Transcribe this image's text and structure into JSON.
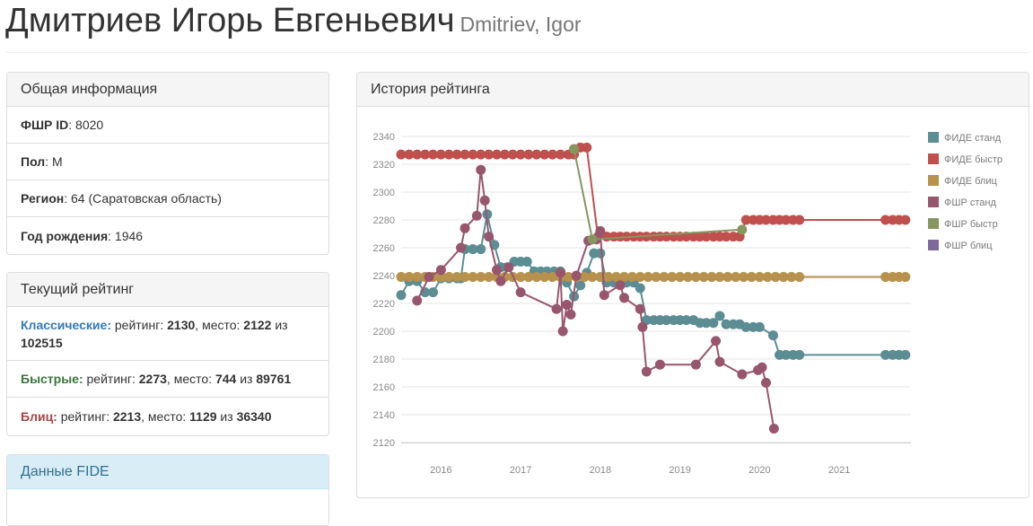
{
  "header": {
    "name_ru": "Дмитриев Игорь Евгеньевич",
    "name_en": "Dmitriev, Igor"
  },
  "general": {
    "title": "Общая информация",
    "id_label": "ФШР ID",
    "id_value": "8020",
    "sex_label": "Пол",
    "sex_value": "М",
    "region_label": "Регион",
    "region_value": "64 (Саратовская область)",
    "birth_label": "Год рождения",
    "birth_value": "1946"
  },
  "current": {
    "title": "Текущий рейтинг",
    "rating_word": "рейтинг:",
    "place_word": "место:",
    "of_word": "из",
    "classic": {
      "label": "Классические:",
      "rating": "2130",
      "place": "2122",
      "total": "102515"
    },
    "rapid": {
      "label": "Быстрые:",
      "rating": "2273",
      "place": "744",
      "total": "89761"
    },
    "blitz": {
      "label": "Блиц:",
      "rating": "2213",
      "place": "1129",
      "total": "36340"
    }
  },
  "fide_panel": {
    "title": "Данные FIDE"
  },
  "history": {
    "title": "История рейтинга"
  },
  "colors": {
    "fide_std": "#5b8d93",
    "fide_rapid": "#c0504d",
    "fide_blitz": "#b8914d",
    "fsr_std": "#97566e",
    "fsr_rapid": "#869660",
    "fsr_blitz": "#7d6a9c"
  },
  "chart_data": {
    "type": "line",
    "x_ticks": [
      "2016",
      "2017",
      "2018",
      "2019",
      "2020",
      "2021"
    ],
    "ylim": [
      2120,
      2340
    ],
    "y_ticks": [
      2120,
      2140,
      2160,
      2180,
      2200,
      2220,
      2240,
      2260,
      2280,
      2300,
      2320,
      2340
    ],
    "grid": true,
    "legend_position": "right",
    "series": [
      {
        "name": "ФИДЕ станд",
        "color": "#5b8d93",
        "points": [
          [
            2015.5,
            2226
          ],
          [
            2015.6,
            2236
          ],
          [
            2015.7,
            2236
          ],
          [
            2015.8,
            2228
          ],
          [
            2015.9,
            2228
          ],
          [
            2016.0,
            2238
          ],
          [
            2016.1,
            2238
          ],
          [
            2016.2,
            2238
          ],
          [
            2016.25,
            2238
          ],
          [
            2016.3,
            2259
          ],
          [
            2016.4,
            2259
          ],
          [
            2016.5,
            2259
          ],
          [
            2016.58,
            2284
          ],
          [
            2016.67,
            2262
          ],
          [
            2016.75,
            2246
          ],
          [
            2016.83,
            2246
          ],
          [
            2016.92,
            2250
          ],
          [
            2017.0,
            2250
          ],
          [
            2017.08,
            2250
          ],
          [
            2017.17,
            2243
          ],
          [
            2017.25,
            2243
          ],
          [
            2017.33,
            2243
          ],
          [
            2017.42,
            2243
          ],
          [
            2017.5,
            2243
          ],
          [
            2017.58,
            2235
          ],
          [
            2017.67,
            2225
          ],
          [
            2017.75,
            2233
          ],
          [
            2017.83,
            2242
          ],
          [
            2017.92,
            2256
          ],
          [
            2018.0,
            2256
          ],
          [
            2018.08,
            2235
          ],
          [
            2018.17,
            2235
          ],
          [
            2018.25,
            2235
          ],
          [
            2018.33,
            2235
          ],
          [
            2018.42,
            2235
          ],
          [
            2018.5,
            2231
          ],
          [
            2018.58,
            2208
          ],
          [
            2018.67,
            2208
          ],
          [
            2018.75,
            2208
          ],
          [
            2018.83,
            2208
          ],
          [
            2018.92,
            2208
          ],
          [
            2019.0,
            2208
          ],
          [
            2019.08,
            2208
          ],
          [
            2019.17,
            2208
          ],
          [
            2019.25,
            2206
          ],
          [
            2019.33,
            2206
          ],
          [
            2019.42,
            2206
          ],
          [
            2019.5,
            2211
          ],
          [
            2019.58,
            2205
          ],
          [
            2019.67,
            2205
          ],
          [
            2019.75,
            2205
          ],
          [
            2019.83,
            2203
          ],
          [
            2019.92,
            2203
          ],
          [
            2020.0,
            2203
          ],
          [
            2020.17,
            2197
          ],
          [
            2020.25,
            2183
          ],
          [
            2020.33,
            2183
          ],
          [
            2020.42,
            2183
          ],
          [
            2020.5,
            2183
          ],
          [
            2021.58,
            2183
          ],
          [
            2021.67,
            2183
          ],
          [
            2021.75,
            2183
          ],
          [
            2021.83,
            2183
          ]
        ]
      },
      {
        "name": "ФИДЕ быстр",
        "color": "#c0504d",
        "points": [
          [
            2015.5,
            2327
          ],
          [
            2015.6,
            2327
          ],
          [
            2015.7,
            2327
          ],
          [
            2015.8,
            2327
          ],
          [
            2015.9,
            2327
          ],
          [
            2016.0,
            2327
          ],
          [
            2016.1,
            2327
          ],
          [
            2016.2,
            2327
          ],
          [
            2016.3,
            2327
          ],
          [
            2016.4,
            2327
          ],
          [
            2016.5,
            2327
          ],
          [
            2016.6,
            2327
          ],
          [
            2016.7,
            2327
          ],
          [
            2016.8,
            2327
          ],
          [
            2016.9,
            2327
          ],
          [
            2017.0,
            2327
          ],
          [
            2017.1,
            2327
          ],
          [
            2017.2,
            2327
          ],
          [
            2017.3,
            2327
          ],
          [
            2017.4,
            2327
          ],
          [
            2017.5,
            2327
          ],
          [
            2017.6,
            2327
          ],
          [
            2017.67,
            2327
          ],
          [
            2017.75,
            2332
          ],
          [
            2017.83,
            2332
          ],
          [
            2017.97,
            2268
          ],
          [
            2018.08,
            2268
          ],
          [
            2018.17,
            2268
          ],
          [
            2018.25,
            2268
          ],
          [
            2018.33,
            2268
          ],
          [
            2018.42,
            2268
          ],
          [
            2018.5,
            2268
          ],
          [
            2018.58,
            2268
          ],
          [
            2018.67,
            2268
          ],
          [
            2018.75,
            2268
          ],
          [
            2018.83,
            2268
          ],
          [
            2018.92,
            2268
          ],
          [
            2019.0,
            2268
          ],
          [
            2019.08,
            2268
          ],
          [
            2019.17,
            2268
          ],
          [
            2019.25,
            2268
          ],
          [
            2019.33,
            2268
          ],
          [
            2019.42,
            2268
          ],
          [
            2019.5,
            2268
          ],
          [
            2019.58,
            2268
          ],
          [
            2019.67,
            2268
          ],
          [
            2019.75,
            2268
          ],
          [
            2019.83,
            2280
          ],
          [
            2019.92,
            2280
          ],
          [
            2020.0,
            2280
          ],
          [
            2020.08,
            2280
          ],
          [
            2020.17,
            2280
          ],
          [
            2020.25,
            2280
          ],
          [
            2020.33,
            2280
          ],
          [
            2020.42,
            2280
          ],
          [
            2020.5,
            2280
          ],
          [
            2021.58,
            2280
          ],
          [
            2021.67,
            2280
          ],
          [
            2021.75,
            2280
          ],
          [
            2021.83,
            2280
          ]
        ]
      },
      {
        "name": "ФИДЕ блиц",
        "color": "#b8914d",
        "points": [
          [
            2015.5,
            2239
          ],
          [
            2015.6,
            2239
          ],
          [
            2015.7,
            2239
          ],
          [
            2015.8,
            2239
          ],
          [
            2015.9,
            2239
          ],
          [
            2016.0,
            2239
          ],
          [
            2016.1,
            2239
          ],
          [
            2016.2,
            2239
          ],
          [
            2016.3,
            2239
          ],
          [
            2016.4,
            2239
          ],
          [
            2016.5,
            2239
          ],
          [
            2016.6,
            2239
          ],
          [
            2016.7,
            2239
          ],
          [
            2016.8,
            2239
          ],
          [
            2016.9,
            2239
          ],
          [
            2017.0,
            2239
          ],
          [
            2017.1,
            2239
          ],
          [
            2017.2,
            2239
          ],
          [
            2017.3,
            2239
          ],
          [
            2017.4,
            2239
          ],
          [
            2017.5,
            2239
          ],
          [
            2017.6,
            2239
          ],
          [
            2017.7,
            2239
          ],
          [
            2017.8,
            2239
          ],
          [
            2017.9,
            2239
          ],
          [
            2018.0,
            2239
          ],
          [
            2018.1,
            2239
          ],
          [
            2018.2,
            2239
          ],
          [
            2018.3,
            2239
          ],
          [
            2018.4,
            2239
          ],
          [
            2018.5,
            2239
          ],
          [
            2018.6,
            2239
          ],
          [
            2018.7,
            2239
          ],
          [
            2018.8,
            2239
          ],
          [
            2018.9,
            2239
          ],
          [
            2019.0,
            2239
          ],
          [
            2019.1,
            2239
          ],
          [
            2019.2,
            2239
          ],
          [
            2019.3,
            2239
          ],
          [
            2019.4,
            2239
          ],
          [
            2019.5,
            2239
          ],
          [
            2019.6,
            2239
          ],
          [
            2019.7,
            2239
          ],
          [
            2019.8,
            2239
          ],
          [
            2019.9,
            2239
          ],
          [
            2020.0,
            2239
          ],
          [
            2020.1,
            2239
          ],
          [
            2020.2,
            2239
          ],
          [
            2020.3,
            2239
          ],
          [
            2020.4,
            2239
          ],
          [
            2020.5,
            2239
          ],
          [
            2021.58,
            2239
          ],
          [
            2021.67,
            2239
          ],
          [
            2021.75,
            2239
          ],
          [
            2021.83,
            2239
          ]
        ]
      },
      {
        "name": "ФШР станд",
        "color": "#97566e",
        "points": [
          [
            2015.7,
            2222
          ],
          [
            2015.85,
            2239
          ],
          [
            2016.0,
            2244
          ],
          [
            2016.25,
            2260
          ],
          [
            2016.3,
            2274
          ],
          [
            2016.45,
            2283
          ],
          [
            2016.5,
            2316
          ],
          [
            2016.55,
            2294
          ],
          [
            2016.6,
            2268
          ],
          [
            2016.7,
            2244
          ],
          [
            2016.75,
            2236
          ],
          [
            2016.85,
            2246
          ],
          [
            2017.0,
            2228
          ],
          [
            2017.45,
            2216
          ],
          [
            2017.5,
            2242
          ],
          [
            2017.53,
            2200
          ],
          [
            2017.58,
            2219
          ],
          [
            2017.63,
            2212
          ],
          [
            2017.7,
            2240
          ],
          [
            2017.85,
            2265
          ],
          [
            2017.95,
            2266
          ],
          [
            2018.0,
            2272
          ],
          [
            2018.05,
            2226
          ],
          [
            2018.25,
            2233
          ],
          [
            2018.3,
            2224
          ],
          [
            2018.5,
            2216
          ],
          [
            2018.53,
            2203
          ],
          [
            2018.58,
            2171
          ],
          [
            2018.75,
            2176
          ],
          [
            2019.2,
            2176
          ],
          [
            2019.45,
            2193
          ],
          [
            2019.5,
            2178
          ],
          [
            2019.78,
            2169
          ],
          [
            2019.98,
            2172
          ],
          [
            2020.03,
            2174
          ],
          [
            2020.08,
            2163
          ],
          [
            2020.18,
            2130
          ]
        ]
      },
      {
        "name": "ФШР быстр",
        "color": "#869660",
        "points": [
          [
            2017.67,
            2331
          ],
          [
            2017.9,
            2266
          ],
          [
            2019.78,
            2273
          ]
        ]
      },
      {
        "name": "ФШР блиц",
        "color": "#7d6a9c",
        "points": []
      }
    ]
  }
}
